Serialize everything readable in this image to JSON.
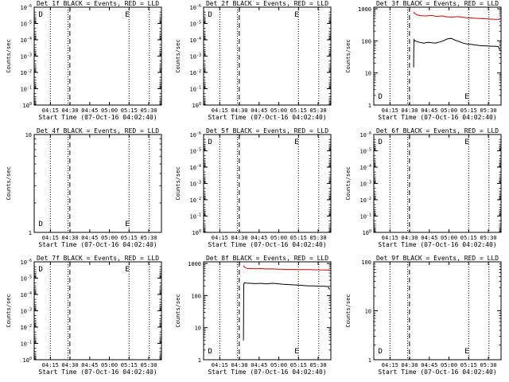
{
  "panels": [
    {
      "title": "Det 1f BLACK = Events, RED = LLD",
      "ylabel": "Counts/sec",
      "ylog": [
        0,
        -6
      ],
      "yticks": [
        {
          "v": 0,
          "t": "10^0"
        },
        {
          "v": -1,
          "t": "10^-1"
        },
        {
          "v": -2,
          "t": "10^-2"
        },
        {
          "v": -3,
          "t": "10^-3"
        },
        {
          "v": -4,
          "t": "10^-4"
        },
        {
          "v": -5,
          "t": "10^-5"
        },
        {
          "v": -6,
          "t": "10^-6"
        }
      ],
      "marks": [
        "D",
        "E"
      ],
      "series": []
    },
    {
      "title": "Det 2f BLACK = Events, RED = LLD",
      "ylabel": "Counts/sec",
      "ylog": [
        0,
        -6
      ],
      "yticks": [
        {
          "v": 0,
          "t": "10^0"
        },
        {
          "v": -1,
          "t": "10^-1"
        },
        {
          "v": -2,
          "t": "10^-2"
        },
        {
          "v": -3,
          "t": "10^-3"
        },
        {
          "v": -4,
          "t": "10^-4"
        },
        {
          "v": -5,
          "t": "10^-5"
        },
        {
          "v": -6,
          "t": "10^-6"
        }
      ],
      "marks": [
        "D",
        "E"
      ],
      "series": []
    },
    {
      "title": "Det 3f BLACK = Events, RED = LLD",
      "ylabel": "Counts/sec",
      "ylog": [
        0,
        3.05
      ],
      "yticks": [
        {
          "v": 0,
          "t": "1"
        },
        {
          "v": 1,
          "t": "10"
        },
        {
          "v": 2,
          "t": "100"
        },
        {
          "v": 3,
          "t": "1000"
        }
      ],
      "marks": [
        "D",
        "E"
      ],
      "series": [
        {
          "name": "LLD",
          "color": "#e00000",
          "x": [
            30.5,
            31,
            33,
            36,
            40,
            44,
            48,
            52,
            56,
            60,
            64,
            68,
            72,
            76,
            80,
            84,
            88,
            92,
            96
          ],
          "y": [
            800,
            730,
            640,
            610,
            600,
            620,
            580,
            600,
            560,
            550,
            570,
            540,
            520,
            510,
            500,
            490,
            480,
            470,
            465
          ]
        },
        {
          "name": "Events",
          "color": "#000000",
          "x": [
            30.4,
            30.6,
            31.2,
            33,
            35,
            38,
            41,
            44,
            47,
            50,
            53,
            56,
            59,
            62,
            65,
            68,
            71,
            74,
            77,
            80,
            83,
            86,
            89,
            92,
            95,
            96
          ],
          "y": [
            15,
            110,
            100,
            95,
            90,
            85,
            90,
            88,
            85,
            92,
            100,
            115,
            120,
            105,
            95,
            85,
            80,
            78,
            75,
            72,
            70,
            70,
            68,
            68,
            66,
            52
          ]
        }
      ]
    },
    {
      "title": "Det 4f BLACK = Events, RED = LLD",
      "ylabel": "Counts/sec",
      "ylog": [
        0,
        1
      ],
      "yticks": [
        {
          "v": 0,
          "t": "1"
        },
        {
          "v": 1,
          "t": "10"
        }
      ],
      "marks": [
        "D",
        "E"
      ],
      "series": []
    },
    {
      "title": "Det 5f BLACK = Events, RED = LLD",
      "ylabel": "Counts/sec",
      "ylog": [
        0,
        -6
      ],
      "yticks": [
        {
          "v": 0,
          "t": "10^0"
        },
        {
          "v": -1,
          "t": "10^-1"
        },
        {
          "v": -2,
          "t": "10^-2"
        },
        {
          "v": -3,
          "t": "10^-3"
        },
        {
          "v": -4,
          "t": "10^-4"
        },
        {
          "v": -5,
          "t": "10^-5"
        },
        {
          "v": -6,
          "t": "10^-6"
        }
      ],
      "marks": [
        "D",
        "E"
      ],
      "series": []
    },
    {
      "title": "Det 6f BLACK = Events, RED = LLD",
      "ylabel": "Counts/sec",
      "ylog": [
        0,
        -6
      ],
      "yticks": [
        {
          "v": 0,
          "t": "10^0"
        },
        {
          "v": -1,
          "t": "10^-1"
        },
        {
          "v": -2,
          "t": "10^-2"
        },
        {
          "v": -3,
          "t": "10^-3"
        },
        {
          "v": -4,
          "t": "10^-4"
        },
        {
          "v": -5,
          "t": "10^-5"
        },
        {
          "v": -6,
          "t": "10^-6"
        }
      ],
      "marks": [
        "D",
        "E"
      ],
      "series": []
    },
    {
      "title": "Det 7f BLACK = Events, RED = LLD",
      "ylabel": "Counts/sec",
      "ylog": [
        0,
        -6
      ],
      "yticks": [
        {
          "v": 0,
          "t": "10^0"
        },
        {
          "v": -1,
          "t": "10^-1"
        },
        {
          "v": -2,
          "t": "10^-2"
        },
        {
          "v": -3,
          "t": "10^-3"
        },
        {
          "v": -4,
          "t": "10^-4"
        },
        {
          "v": -5,
          "t": "10^-5"
        },
        {
          "v": -6,
          "t": "10^-6"
        }
      ],
      "marks": [
        "D",
        "E"
      ],
      "series": []
    },
    {
      "title": "Det 8f BLACK = Events, RED = LLD",
      "ylabel": "Counts/sec",
      "ylog": [
        0,
        3.05
      ],
      "yticks": [
        {
          "v": 0,
          "t": "1"
        },
        {
          "v": 1,
          "t": "10"
        },
        {
          "v": 2,
          "t": "100"
        },
        {
          "v": 3,
          "t": "1000"
        }
      ],
      "marks": [
        "D",
        "E"
      ],
      "series": [
        {
          "name": "LLD",
          "color": "#e00000",
          "x": [
            30.5,
            31,
            33,
            36,
            40,
            44,
            48,
            52,
            56,
            60,
            64,
            68,
            72,
            76,
            80,
            84,
            88,
            92,
            96
          ],
          "y": [
            850,
            780,
            700,
            690,
            680,
            690,
            670,
            680,
            660,
            660,
            650,
            650,
            645,
            640,
            640,
            635,
            630,
            625,
            620
          ]
        },
        {
          "name": "Events",
          "color": "#000000",
          "x": [
            30.4,
            30.6,
            31.2,
            33,
            36,
            40,
            44,
            48,
            52,
            56,
            60,
            64,
            68,
            72,
            76,
            80,
            84,
            88,
            92,
            95,
            96
          ],
          "y": [
            4,
            230,
            250,
            245,
            240,
            235,
            240,
            230,
            240,
            235,
            225,
            220,
            215,
            210,
            205,
            200,
            200,
            195,
            195,
            190,
            150
          ]
        }
      ]
    },
    {
      "title": "Det 9f BLACK = Events, RED = LLD",
      "ylabel": "Counts/sec",
      "ylog": [
        0,
        2
      ],
      "yticks": [
        {
          "v": 0,
          "t": "1"
        },
        {
          "v": 1,
          "t": "10"
        },
        {
          "v": 2,
          "t": "100"
        }
      ],
      "marks": [
        "D",
        "E"
      ],
      "series": []
    }
  ],
  "chart_data": {
    "type": "line",
    "xlabel": "Start Time (07-Oct-16 04:02:40)",
    "xunit": "minutes after 04:02:40",
    "xlim": [
      0,
      97
    ],
    "xticks": [
      {
        "v": 12.33,
        "t": "04:15"
      },
      {
        "v": 27.33,
        "t": "04:30"
      },
      {
        "v": 42.33,
        "t": "04:45"
      },
      {
        "v": 57.33,
        "t": "05:00"
      },
      {
        "v": 72.33,
        "t": "05:15"
      },
      {
        "v": 87.33,
        "t": "05:30"
      }
    ],
    "dotted_lines": [
      12.33,
      25.8,
      72.3,
      87.8
    ],
    "dashed_lines": [
      27.2
    ],
    "yscale": "log",
    "grid": false
  }
}
